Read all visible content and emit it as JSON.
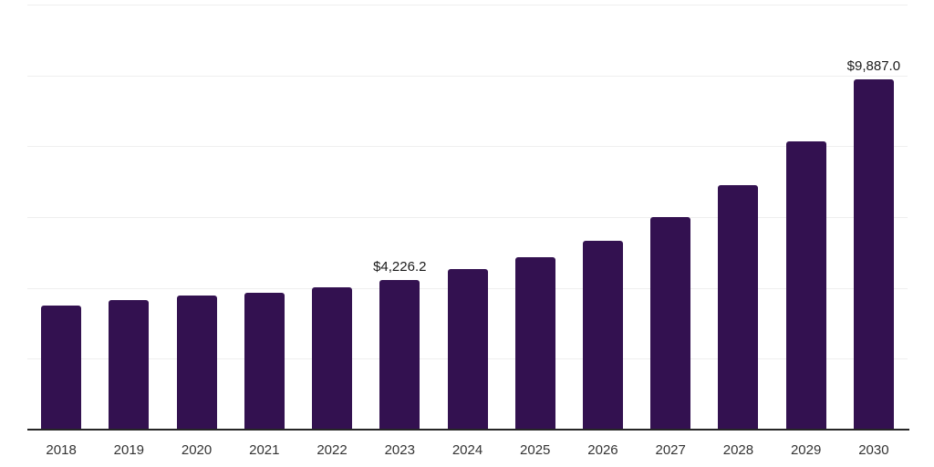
{
  "chart_data": {
    "type": "bar",
    "title": "",
    "xlabel": "",
    "ylabel": "",
    "categories": [
      "2018",
      "2019",
      "2020",
      "2021",
      "2022",
      "2023",
      "2024",
      "2025",
      "2026",
      "2027",
      "2028",
      "2029",
      "2030"
    ],
    "values": [
      3495,
      3645,
      3775,
      3875,
      4030,
      4226.2,
      4540,
      4870,
      5330,
      5995,
      6910,
      8135,
      9887.0
    ],
    "bar_labels": [
      "",
      "",
      "",
      "",
      "",
      "$4,226.2",
      "",
      "",
      "",
      "",
      "",
      "",
      "$9,887.0"
    ],
    "ylim": [
      0,
      12000
    ],
    "gridline_step": 2000,
    "grid": true,
    "legend": false,
    "colors": {
      "bar": "#331150",
      "gridline": "#efefef",
      "axis": "#262626",
      "tick_label": "#333333",
      "value_label": "#1a1a1a",
      "background": "#ffffff"
    }
  }
}
